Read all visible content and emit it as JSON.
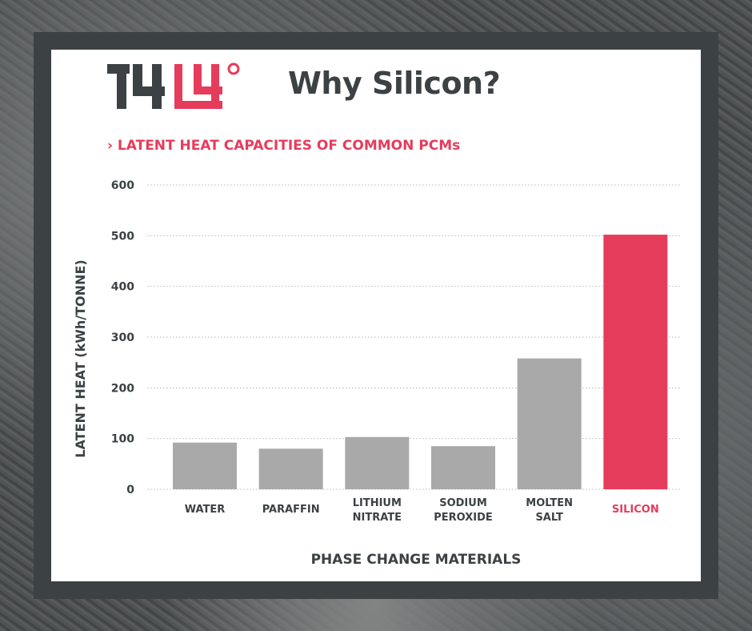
{
  "header": {
    "logo_text_left": "14",
    "logo_text_right": "14°",
    "title": "Why Silicon?"
  },
  "colors": {
    "accent": "#e63c5c",
    "dark": "#3c4143",
    "bar_default": "#a9a9a9",
    "frame": "#3c4143"
  },
  "chart_data": {
    "type": "bar",
    "title": "› LATENT HEAT CAPACITIES OF COMMON PCMs",
    "xlabel": "PHASE CHANGE MATERIALS",
    "ylabel": "LATENT HEAT (kWh/TONNE)",
    "ylim": [
      0,
      600
    ],
    "yticks": [
      0,
      100,
      200,
      300,
      400,
      500,
      600
    ],
    "grid": true,
    "categories": [
      [
        "WATER"
      ],
      [
        "PARAFFIN"
      ],
      [
        "LITHIUM",
        "NITRATE"
      ],
      [
        "SODIUM",
        "PEROXIDE"
      ],
      [
        "MOLTEN",
        "SALT"
      ],
      [
        "SILICON"
      ]
    ],
    "values": [
      92,
      80,
      103,
      85,
      258,
      502
    ],
    "highlight": [
      false,
      false,
      false,
      false,
      false,
      true
    ]
  }
}
